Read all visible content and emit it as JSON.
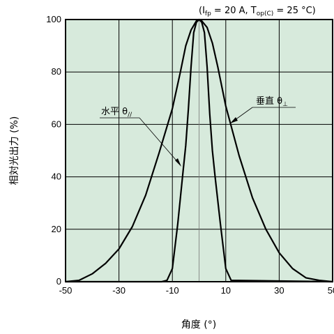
{
  "chart_data": {
    "type": "line",
    "title": "",
    "condition_note": {
      "open": "(I",
      "sub1": "fp",
      "mid": " = 20 A, T",
      "sub2": "op(C)",
      "close": " = 25 °C)"
    },
    "xlabel": "角度 (°)",
    "ylabel": "相対光出力 (%)",
    "xlim": [
      -50,
      50
    ],
    "ylim": [
      0,
      100
    ],
    "xticks": [
      "-50",
      "-30",
      "-10",
      "10",
      "30",
      "50"
    ],
    "xtick_values": [
      -50,
      -30,
      -10,
      10,
      30,
      50
    ],
    "yticks": [
      "0",
      "20",
      "40",
      "60",
      "80",
      "100"
    ],
    "ytick_values": [
      0,
      20,
      40,
      60,
      80,
      100
    ],
    "grid": true,
    "series": [
      {
        "name": "垂直 θ⊥",
        "label_main": "垂直 θ",
        "label_sub": "⊥",
        "x": [
          -50,
          -45,
          -40,
          -35,
          -30,
          -25,
          -20,
          -15,
          -10,
          -7,
          -5,
          -3,
          -1,
          0,
          1,
          3,
          5,
          7,
          10,
          15,
          20,
          25,
          30,
          35,
          40,
          45,
          50
        ],
        "y": [
          0,
          0.5,
          3,
          7,
          12.5,
          21,
          33,
          49,
          66,
          80,
          90,
          96,
          99.5,
          100,
          99.5,
          97,
          91,
          82,
          67,
          48,
          32,
          20,
          11,
          5,
          1.5,
          0.5,
          0
        ]
      },
      {
        "name": "水平 θ//",
        "label_main": "水平 θ",
        "label_sub": "//",
        "x": [
          -50,
          -14,
          -12,
          -10,
          -8,
          -6,
          -5,
          -4,
          -3,
          -2,
          -1,
          0,
          1,
          2,
          3,
          4,
          5,
          6,
          8,
          10,
          12,
          50
        ],
        "y": [
          0,
          0,
          0.5,
          5,
          22,
          42,
          52,
          66,
          82,
          95,
          99,
          100,
          99,
          95,
          82,
          64,
          50,
          40,
          22,
          5,
          0.5,
          0
        ]
      }
    ],
    "background_color": "#d7eadc",
    "line_color": "#000000"
  }
}
